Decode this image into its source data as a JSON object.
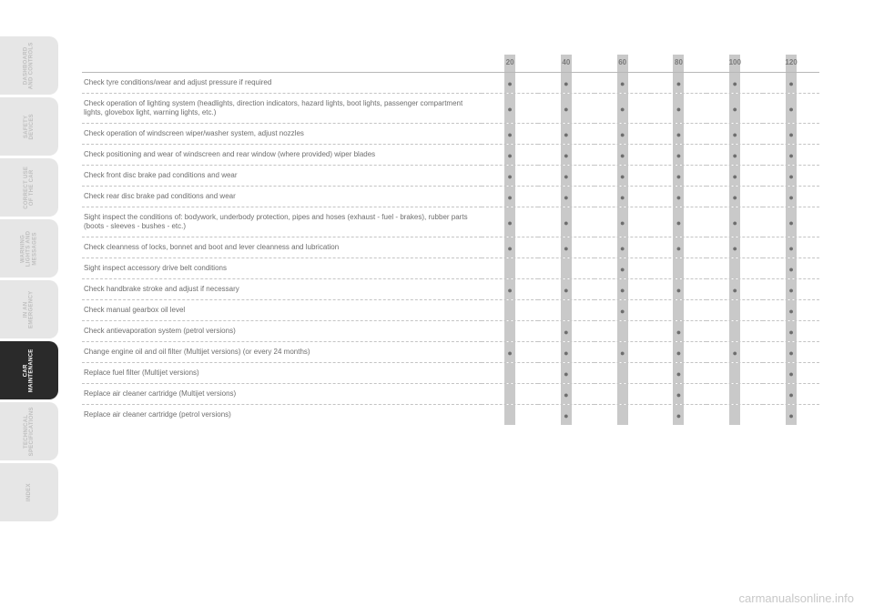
{
  "page_number": "",
  "watermark": "carmanualsonline.info",
  "sidebar": {
    "tabs": [
      {
        "id": "dashboard",
        "label": "DASHBOARD\nAND CONTROLS",
        "active": false
      },
      {
        "id": "safety",
        "label": "SAFETY\nDEVICES",
        "active": false
      },
      {
        "id": "correct-use",
        "label": "CORRECT USE\nOF THE CAR",
        "active": false
      },
      {
        "id": "warning",
        "label": "WARNING\nLIGHTS AND\nMESSAGES",
        "active": false
      },
      {
        "id": "emergency",
        "label": "IN AN\nEMERGENCY",
        "active": false
      },
      {
        "id": "maintenance",
        "label": "CAR\nMAINTENANCE",
        "active": true
      },
      {
        "id": "tech",
        "label": "TECHNICAL\nSPECIFICATIONS",
        "active": false
      },
      {
        "id": "index",
        "label": "INDEX",
        "active": false
      }
    ]
  },
  "schedule": {
    "heading_operations": "",
    "mileage_header": [
      "20",
      "40",
      "60",
      "80",
      "100",
      "120"
    ],
    "rows": [
      {
        "op": "Check tyre conditions/wear and adjust pressure if required",
        "marks": [
          1,
          1,
          1,
          1,
          1,
          1
        ]
      },
      {
        "op": "Check operation of lighting system (headlights, direction indicators, hazard lights, boot lights, passenger compartment lights, glovebox light, warning lights, etc.)",
        "marks": [
          1,
          1,
          1,
          1,
          1,
          1
        ]
      },
      {
        "op": "Check operation of windscreen wiper/washer system, adjust nozzles",
        "marks": [
          1,
          1,
          1,
          1,
          1,
          1
        ]
      },
      {
        "op": "Check positioning and wear of windscreen and rear window (where provided) wiper blades",
        "marks": [
          1,
          1,
          1,
          1,
          1,
          1
        ]
      },
      {
        "op": "Check front disc brake pad conditions and wear",
        "marks": [
          1,
          1,
          1,
          1,
          1,
          1
        ]
      },
      {
        "op": "Check rear disc brake pad conditions and wear",
        "marks": [
          1,
          1,
          1,
          1,
          1,
          1
        ]
      },
      {
        "op": "Sight inspect the conditions of: bodywork, underbody protection, pipes and hoses (exhaust - fuel - brakes), rubber parts (boots - sleeves - bushes - etc.)",
        "marks": [
          1,
          1,
          1,
          1,
          1,
          1
        ]
      },
      {
        "op": "Check cleanness of locks, bonnet and boot and lever cleanness and lubrication",
        "marks": [
          1,
          1,
          1,
          1,
          1,
          1
        ]
      },
      {
        "op": "Sight inspect accessory drive belt conditions",
        "marks": [
          0,
          0,
          1,
          0,
          0,
          1
        ]
      },
      {
        "op": "Check handbrake stroke and adjust if necessary",
        "marks": [
          1,
          1,
          1,
          1,
          1,
          1
        ]
      },
      {
        "op": "Check manual gearbox oil level",
        "marks": [
          0,
          0,
          1,
          0,
          0,
          1
        ]
      },
      {
        "op": "Check antievaporation system (petrol versions)",
        "marks": [
          0,
          1,
          0,
          1,
          0,
          1
        ]
      },
      {
        "op": "Change engine oil and oil filter (Multijet versions) (or every 24 months)",
        "marks": [
          1,
          1,
          1,
          1,
          1,
          1
        ]
      },
      {
        "op": "Replace fuel filter (Multijet versions)",
        "marks": [
          0,
          1,
          0,
          1,
          0,
          1
        ]
      },
      {
        "op": "Replace air cleaner cartridge (Multijet versions)",
        "marks": [
          0,
          1,
          0,
          1,
          0,
          1
        ]
      },
      {
        "op": "Replace air cleaner cartridge (petrol versions)",
        "marks": [
          0,
          1,
          0,
          1,
          0,
          1
        ]
      }
    ]
  },
  "style": {
    "page_bg": "#ffffff",
    "tab_bg": "#e6e6e6",
    "tab_active_bg": "#2a2a2a",
    "tab_label_color": "#bfbfbf",
    "tab_active_label_color": "#ffffff",
    "col_bar_color": "#c9c9c9",
    "row_sep_color": "#c4c4c4",
    "text_color": "#6e6e6e",
    "watermark_color": "#c8c8c8"
  }
}
